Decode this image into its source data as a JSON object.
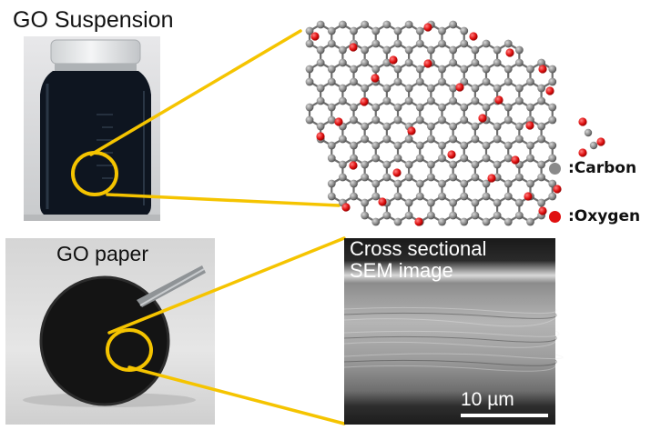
{
  "labels": {
    "suspension": "GO Suspension",
    "paper": "GO paper",
    "sem_line1": "Cross sectional",
    "sem_line2": "SEM image",
    "scale_bar": "10 µm"
  },
  "legend": [
    {
      "label": ":Carbon",
      "color": "#8a8a8a"
    },
    {
      "label": ":Oxygen",
      "color": "#e01010"
    }
  ],
  "colors": {
    "callout": "#f5c400",
    "carbon": "#8a8a8a",
    "oxygen": "#e01010",
    "liquid": "#0e1520"
  }
}
